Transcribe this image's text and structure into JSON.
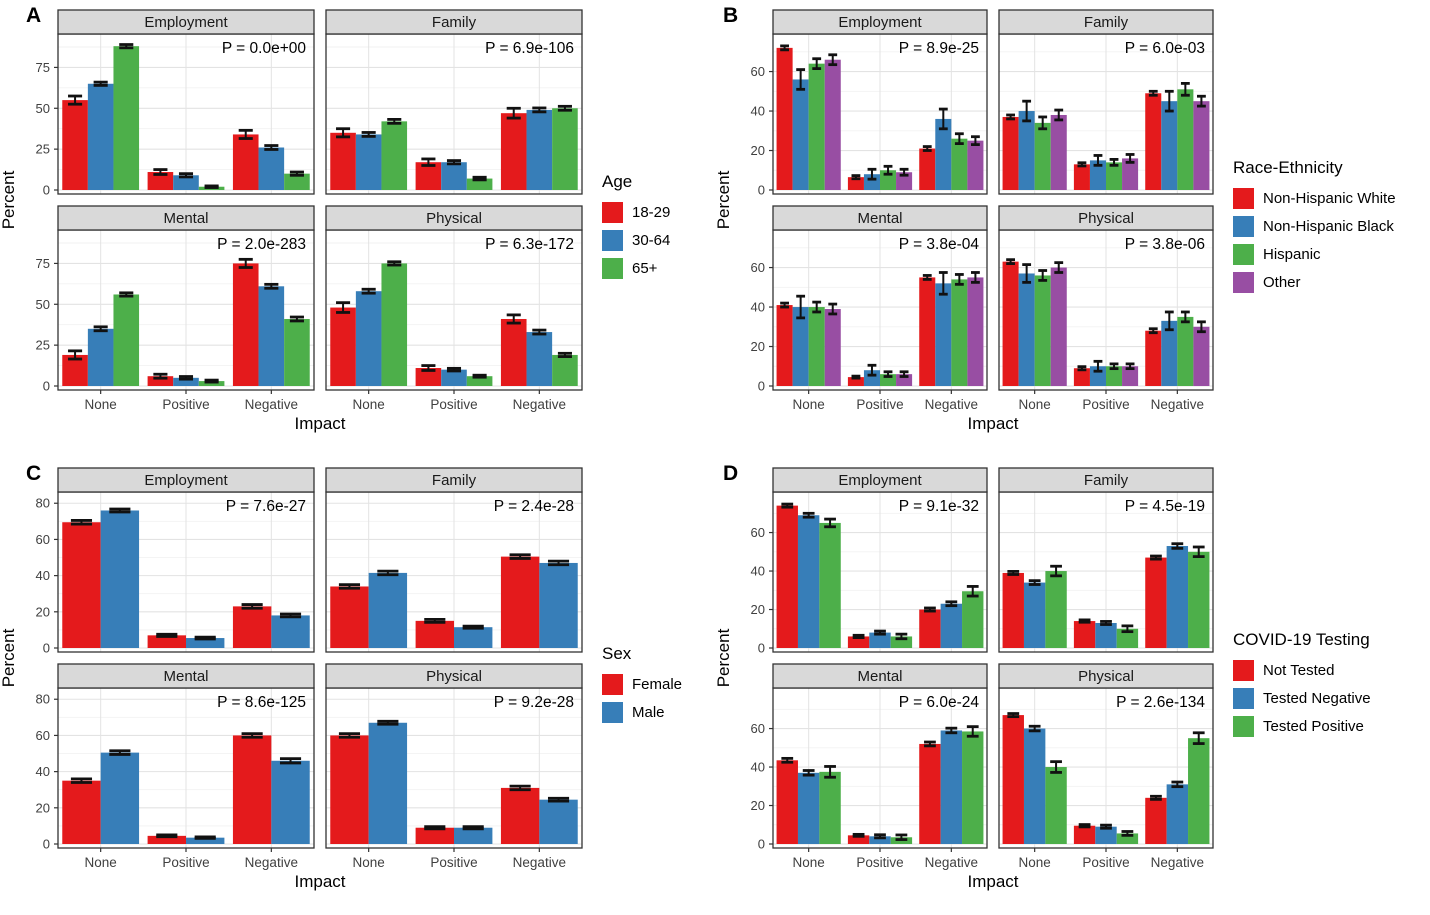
{
  "chart_data": [
    {
      "panel_label": "A",
      "type": "bar",
      "legend_title": "Age",
      "legend_position": "right",
      "xlabel": "Impact",
      "ylabel": "Percent",
      "categories": [
        "None",
        "Positive",
        "Negative"
      ],
      "yticks": [
        0,
        25,
        50,
        75
      ],
      "ylim": [
        0,
        93
      ],
      "grid": true,
      "error_bars": true,
      "layout": "wide",
      "series": [
        {
          "name": "18-29",
          "color": "#E41A1C"
        },
        {
          "name": "30-64",
          "color": "#377EB8"
        },
        {
          "name": "65+",
          "color": "#4DAF4A"
        }
      ],
      "facets": [
        {
          "title": "Employment",
          "p_label": "P =  0.0e+00",
          "values": [
            [
              55,
              65,
              88
            ],
            [
              11,
              9,
              2
            ],
            [
              34,
              26,
              10
            ]
          ],
          "errors": [
            [
              2.5,
              1,
              1
            ],
            [
              1.5,
              1,
              0.5
            ],
            [
              2.5,
              1.2,
              1
            ]
          ]
        },
        {
          "title": "Family",
          "p_label": "P = 6.9e-106",
          "values": [
            [
              35,
              34,
              42
            ],
            [
              17,
              17,
              7
            ],
            [
              47,
              49,
              50
            ]
          ],
          "errors": [
            [
              2.5,
              1.2,
              1.2
            ],
            [
              2,
              1,
              0.8
            ],
            [
              3,
              1.2,
              1.2
            ]
          ]
        },
        {
          "title": "Mental",
          "p_label": "P = 2.0e-283",
          "values": [
            [
              19,
              35,
              56
            ],
            [
              6,
              5,
              3
            ],
            [
              75,
              61,
              41
            ]
          ],
          "errors": [
            [
              2.5,
              1.2,
              1
            ],
            [
              1.2,
              0.8,
              0.6
            ],
            [
              2.5,
              1.2,
              1.2
            ]
          ]
        },
        {
          "title": "Physical",
          "p_label": "P = 6.3e-172",
          "values": [
            [
              48,
              58,
              75
            ],
            [
              11,
              10,
              6
            ],
            [
              41,
              33,
              19
            ]
          ],
          "errors": [
            [
              3,
              1.2,
              1
            ],
            [
              1.5,
              0.8,
              0.6
            ],
            [
              2.5,
              1.2,
              1
            ]
          ]
        }
      ]
    },
    {
      "panel_label": "B",
      "type": "bar",
      "legend_title": "Race-Ethnicity",
      "legend_position": "right",
      "xlabel": "Impact",
      "ylabel": "Percent",
      "categories": [
        "None",
        "Positive",
        "Negative"
      ],
      "yticks": [
        0,
        20,
        40,
        60
      ],
      "ylim": [
        0,
        77
      ],
      "grid": true,
      "error_bars": true,
      "layout": "narrow",
      "series": [
        {
          "name": "Non-Hispanic White",
          "color": "#E41A1C"
        },
        {
          "name": "Non-Hispanic Black",
          "color": "#377EB8"
        },
        {
          "name": "Hispanic",
          "color": "#4DAF4A"
        },
        {
          "name": "Other",
          "color": "#984EA3"
        }
      ],
      "facets": [
        {
          "title": "Employment",
          "p_label": "P = 8.9e-25",
          "values": [
            [
              72,
              56,
              64,
              66
            ],
            [
              6.5,
              8,
              10,
              9
            ],
            [
              21,
              36,
              26,
              25
            ]
          ],
          "errors": [
            [
              1,
              5,
              2.5,
              2.5
            ],
            [
              0.8,
              2.5,
              2,
              1.5
            ],
            [
              1,
              5,
              2.5,
              2
            ]
          ]
        },
        {
          "title": "Family",
          "p_label": "P = 6.0e-03",
          "values": [
            [
              37,
              40,
              34,
              38
            ],
            [
              13,
              15,
              14,
              16
            ],
            [
              49,
              45,
              51,
              45
            ]
          ],
          "errors": [
            [
              1,
              5,
              3,
              2.5
            ],
            [
              0.8,
              2.5,
              1.5,
              2
            ],
            [
              1,
              5,
              3,
              2.5
            ]
          ]
        },
        {
          "title": "Mental",
          "p_label": "P = 3.8e-04",
          "values": [
            [
              41,
              40,
              40,
              39
            ],
            [
              4.5,
              8,
              6,
              6
            ],
            [
              55,
              52,
              54,
              55
            ]
          ],
          "errors": [
            [
              1,
              5.5,
              2.5,
              2.5
            ],
            [
              0.5,
              2.5,
              1.2,
              1.2
            ],
            [
              1,
              5.5,
              2.5,
              2.5
            ]
          ]
        },
        {
          "title": "Physical",
          "p_label": "P = 3.8e-06",
          "values": [
            [
              63,
              57,
              56,
              60
            ],
            [
              9,
              10,
              10,
              10
            ],
            [
              28,
              33,
              35,
              30
            ]
          ],
          "errors": [
            [
              1,
              4.5,
              2.5,
              2.5
            ],
            [
              0.8,
              2.5,
              1.2,
              1.2
            ],
            [
              1,
              4.5,
              2.5,
              2.5
            ]
          ]
        }
      ]
    },
    {
      "panel_label": "C",
      "type": "bar",
      "legend_title": "Sex",
      "legend_position": "right",
      "xlabel": "Impact",
      "ylabel": "Percent",
      "categories": [
        "None",
        "Positive",
        "Negative"
      ],
      "yticks": [
        0,
        20,
        40,
        60,
        80
      ],
      "ylim": [
        0,
        84
      ],
      "grid": true,
      "error_bars": true,
      "layout": "wide",
      "series": [
        {
          "name": "Female",
          "color": "#E41A1C"
        },
        {
          "name": "Male",
          "color": "#377EB8"
        }
      ],
      "facets": [
        {
          "title": "Employment",
          "p_label": "P =  7.6e-27",
          "values": [
            [
              69.5,
              76
            ],
            [
              7,
              5.5
            ],
            [
              23,
              18
            ]
          ],
          "errors": [
            [
              1,
              0.8
            ],
            [
              0.6,
              0.5
            ],
            [
              1,
              0.8
            ]
          ]
        },
        {
          "title": "Family",
          "p_label": "P =  2.4e-28",
          "values": [
            [
              34,
              41.5
            ],
            [
              15,
              11.5
            ],
            [
              50.5,
              47
            ]
          ],
          "errors": [
            [
              1,
              1
            ],
            [
              0.8,
              0.6
            ],
            [
              1,
              1
            ]
          ]
        },
        {
          "title": "Mental",
          "p_label": "P = 8.6e-125",
          "values": [
            [
              35,
              50.5
            ],
            [
              4.5,
              3.5
            ],
            [
              60,
              46
            ]
          ],
          "errors": [
            [
              1,
              1
            ],
            [
              0.5,
              0.4
            ],
            [
              1,
              1.2
            ]
          ]
        },
        {
          "title": "Physical",
          "p_label": "P =  9.2e-28",
          "values": [
            [
              60,
              67
            ],
            [
              9,
              9
            ],
            [
              31,
              24.5
            ]
          ],
          "errors": [
            [
              1,
              0.8
            ],
            [
              0.6,
              0.6
            ],
            [
              1,
              0.8
            ]
          ]
        }
      ]
    },
    {
      "panel_label": "D",
      "type": "bar",
      "legend_title": "COVID-19 Testing",
      "legend_position": "right",
      "xlabel": "Impact",
      "ylabel": "Percent",
      "categories": [
        "None",
        "Positive",
        "Negative"
      ],
      "yticks": [
        0,
        20,
        40,
        60
      ],
      "ylim": [
        0,
        79
      ],
      "grid": true,
      "error_bars": true,
      "layout": "narrow",
      "series": [
        {
          "name": "Not Tested",
          "color": "#E41A1C"
        },
        {
          "name": "Tested Negative",
          "color": "#377EB8"
        },
        {
          "name": "Tested Positive",
          "color": "#4DAF4A"
        }
      ],
      "facets": [
        {
          "title": "Employment",
          "p_label": "P =  9.1e-32",
          "values": [
            [
              74,
              69,
              65
            ],
            [
              6,
              8,
              6
            ],
            [
              20,
              23,
              29.5
            ]
          ],
          "errors": [
            [
              0.8,
              1,
              2
            ],
            [
              0.6,
              0.8,
              1.2
            ],
            [
              0.8,
              1,
              2.5
            ]
          ]
        },
        {
          "title": "Family",
          "p_label": "P =  4.5e-19",
          "values": [
            [
              39,
              34,
              40
            ],
            [
              14,
              13,
              10
            ],
            [
              47,
              53,
              50
            ]
          ],
          "errors": [
            [
              0.8,
              1,
              2.5
            ],
            [
              0.6,
              0.8,
              1.5
            ],
            [
              0.8,
              1.2,
              2.5
            ]
          ]
        },
        {
          "title": "Mental",
          "p_label": "P =  6.0e-24",
          "values": [
            [
              43.5,
              37,
              37.5
            ],
            [
              4.5,
              4,
              3.5
            ],
            [
              52,
              59,
              58.5
            ]
          ],
          "errors": [
            [
              1,
              1.2,
              2.8
            ],
            [
              0.5,
              0.8,
              1.2
            ],
            [
              1,
              1.2,
              2.5
            ]
          ]
        },
        {
          "title": "Physical",
          "p_label": "P = 2.6e-134",
          "values": [
            [
              67,
              60,
              40
            ],
            [
              9.5,
              9,
              5.5
            ],
            [
              24,
              31,
              55
            ]
          ],
          "errors": [
            [
              0.8,
              1.2,
              2.8
            ],
            [
              0.6,
              0.8,
              1
            ],
            [
              0.8,
              1.2,
              2.8
            ]
          ]
        }
      ]
    }
  ],
  "style": {
    "strip_fill": "#D9D9D9",
    "panel_border": "#333333",
    "gridline_major": "#E3E3E3",
    "gridline_minor": "#F2F2F2",
    "errorbar_color": "#111111",
    "axis_text_color": "#404040"
  }
}
